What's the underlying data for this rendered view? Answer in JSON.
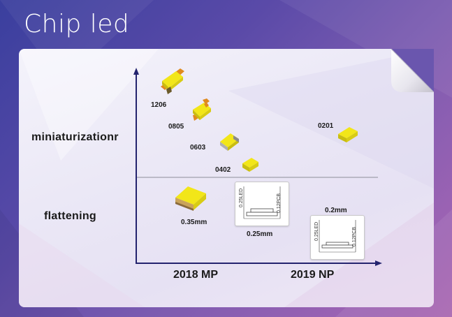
{
  "title": "Chip led",
  "rows": {
    "top": "miniaturizationr",
    "bottom": "flattening"
  },
  "x_axis": {
    "left": "2018 MP",
    "right": "2019 NP"
  },
  "chips": {
    "c1206": "1206",
    "c0805": "0805",
    "c0603": "0603",
    "c0402": "0402",
    "c0201": "0201"
  },
  "flat": {
    "thick_label": "0.35mm",
    "mid_label": "0.25mm",
    "thin_label": "0.2mm",
    "mid_led": "0.25LED",
    "mid_pcb": "0.12PCB",
    "thin_led": "0.25LED",
    "thin_pcb": "0.12PCB"
  },
  "colors": {
    "led_yellow": "#f2e619",
    "led_side": "#c9bd10",
    "pad_orange": "#e08a1e",
    "axis": "#23236e"
  }
}
